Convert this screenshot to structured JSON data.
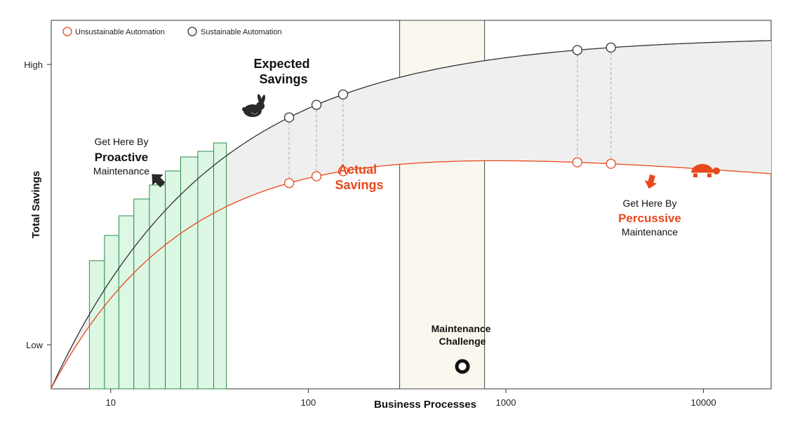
{
  "chart_data": {
    "type": "line",
    "xlabel": "Business Processes",
    "ylabel": "Total Savings",
    "xscale": "log",
    "xlim": [
      5,
      22000
    ],
    "x_ticks": [
      10,
      100,
      1000,
      10000
    ],
    "x_tick_labels": [
      "10",
      "100",
      "1000",
      "10000"
    ],
    "y_ticks": [
      "High",
      "Low"
    ],
    "legend": {
      "position": "top-left",
      "entries": [
        {
          "label": "Unsustainable Automation",
          "color": "#e8481c"
        },
        {
          "label": "Sustainable Automation",
          "color": "#333333"
        }
      ]
    },
    "series": [
      {
        "name": "Sustainable Automation",
        "color": "#333333",
        "markers_x": [
          80,
          110,
          150,
          2300,
          3400
        ]
      },
      {
        "name": "Unsustainable Automation",
        "color": "#e8481c",
        "markers_x": [
          80,
          110,
          150,
          2300,
          3400
        ]
      }
    ],
    "bars": {
      "color": "#dcf7e3",
      "edge": "#2e8b4b",
      "edges_x": [
        7.8,
        9.3,
        11.0,
        13.1,
        15.7,
        18.9,
        22.6,
        27.6,
        33.2,
        38.5
      ],
      "heights_frac": [
        0.3,
        0.39,
        0.46,
        0.52,
        0.57,
        0.62,
        0.67,
        0.69,
        0.72
      ]
    },
    "region": {
      "label": "Maintenance Challenge",
      "x_from": 290,
      "x_to": 780
    },
    "annotations": {
      "expected": "Expected\nSavings",
      "actual": "Actual\nSavings",
      "proactive_pre": "Get Here By",
      "proactive_main": "Proactive",
      "proactive_post": "Maintenance",
      "percussive_pre": "Get Here By",
      "percussive_main": "Percussive",
      "percussive_post": "Maintenance"
    },
    "icons": [
      "rabbit-icon",
      "turtle-icon",
      "arrow-up-left-icon",
      "arrow-down-icon",
      "target-circle-icon"
    ],
    "grid": false
  }
}
